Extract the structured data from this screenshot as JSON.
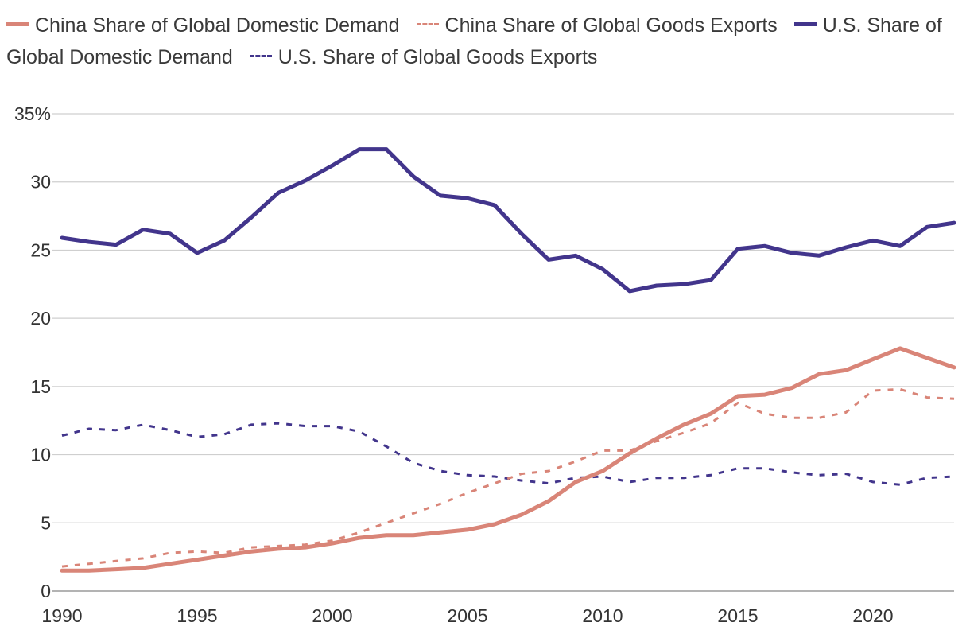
{
  "chart_data": {
    "type": "line",
    "title": "",
    "xlabel": "",
    "ylabel": "",
    "ylim": [
      0,
      35
    ],
    "y_ticks": [
      0,
      5,
      10,
      15,
      20,
      25,
      30,
      35
    ],
    "y_tick_labels": [
      "0",
      "5",
      "10",
      "15",
      "20",
      "25",
      "30",
      "35%"
    ],
    "x_ticks": [
      1990,
      1995,
      2000,
      2005,
      2010,
      2015,
      2020
    ],
    "x_tick_labels": [
      "1990",
      "1995",
      "2000",
      "2005",
      "2010",
      "2015",
      "2020"
    ],
    "xlim": [
      1990,
      2023
    ],
    "grid": true,
    "legend_position": "top",
    "x": [
      1990,
      1991,
      1992,
      1993,
      1994,
      1995,
      1996,
      1997,
      1998,
      1999,
      2000,
      2001,
      2002,
      2003,
      2004,
      2005,
      2006,
      2007,
      2008,
      2009,
      2010,
      2011,
      2012,
      2013,
      2014,
      2015,
      2016,
      2017,
      2018,
      2019,
      2020,
      2021,
      2022,
      2023
    ],
    "series": [
      {
        "name": "China Share of Global Domestic Demand",
        "color": "#d98578",
        "style": "solid",
        "values": [
          1.5,
          1.5,
          1.6,
          1.7,
          2.0,
          2.3,
          2.6,
          2.9,
          3.1,
          3.2,
          3.5,
          3.9,
          4.1,
          4.1,
          4.3,
          4.5,
          4.9,
          5.6,
          6.6,
          8.0,
          8.8,
          10.1,
          11.2,
          12.2,
          13.0,
          14.3,
          14.4,
          14.9,
          15.9,
          16.2,
          17.0,
          17.8,
          17.1,
          16.4
        ]
      },
      {
        "name": "China Share of Global Goods Exports",
        "color": "#d98578",
        "style": "dashed",
        "values": [
          1.8,
          2.0,
          2.2,
          2.4,
          2.8,
          2.9,
          2.8,
          3.2,
          3.3,
          3.4,
          3.7,
          4.3,
          5.0,
          5.7,
          6.4,
          7.2,
          7.9,
          8.6,
          8.8,
          9.5,
          10.3,
          10.3,
          11.0,
          11.6,
          12.3,
          13.8,
          13.0,
          12.7,
          12.7,
          13.1,
          14.7,
          14.8,
          14.2,
          14.1
        ]
      },
      {
        "name": "U.S. Share of Global Domestic Demand",
        "color": "#42358c",
        "style": "solid",
        "values": [
          25.9,
          25.6,
          25.4,
          26.5,
          26.2,
          24.8,
          25.7,
          27.4,
          29.2,
          30.1,
          31.2,
          32.4,
          32.4,
          30.4,
          29.0,
          28.8,
          28.3,
          26.2,
          24.3,
          24.6,
          23.6,
          22.0,
          22.4,
          22.5,
          22.8,
          25.1,
          25.3,
          24.8,
          24.6,
          25.2,
          25.7,
          25.3,
          26.7,
          27.0
        ]
      },
      {
        "name": "U.S. Share of Global Goods Exports",
        "color": "#42358c",
        "style": "dashed",
        "values": [
          11.4,
          11.9,
          11.8,
          12.2,
          11.8,
          11.3,
          11.5,
          12.2,
          12.3,
          12.1,
          12.1,
          11.7,
          10.6,
          9.4,
          8.8,
          8.5,
          8.4,
          8.1,
          7.9,
          8.3,
          8.4,
          8.0,
          8.3,
          8.3,
          8.5,
          9.0,
          9.0,
          8.7,
          8.5,
          8.6,
          8.0,
          7.8,
          8.3,
          8.4
        ]
      }
    ]
  }
}
